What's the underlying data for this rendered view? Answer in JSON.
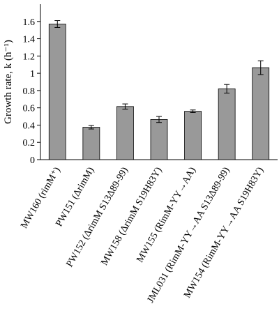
{
  "chart_data": {
    "type": "bar",
    "title": "",
    "xlabel": "",
    "ylabel": "Growth rate, k (h⁻¹)",
    "ylim": [
      0,
      1.8
    ],
    "yticks": [
      "0",
      "0.2",
      "0.4",
      "0.6",
      "0.8",
      "1",
      "1.2",
      "1.4",
      "1.6"
    ],
    "grid": false,
    "bar_color": "#999999",
    "categories": [
      "MW160 (rimM⁺)",
      "PW151 (ΔrimM)",
      "PW152 (ΔrimM S13Δ89-99)",
      "MW158 (ΔrimM S19H83Y)",
      "MW155 (RimM-YY→AA)",
      "JML031 (RimM-YY→AA S13Δ89-99)",
      "MW154 (RimM-YY→AA S19H83Y)"
    ],
    "values": [
      1.57,
      0.375,
      0.615,
      0.465,
      0.56,
      0.82,
      1.065
    ],
    "errors": [
      0.04,
      0.02,
      0.03,
      0.035,
      0.015,
      0.05,
      0.08
    ]
  }
}
